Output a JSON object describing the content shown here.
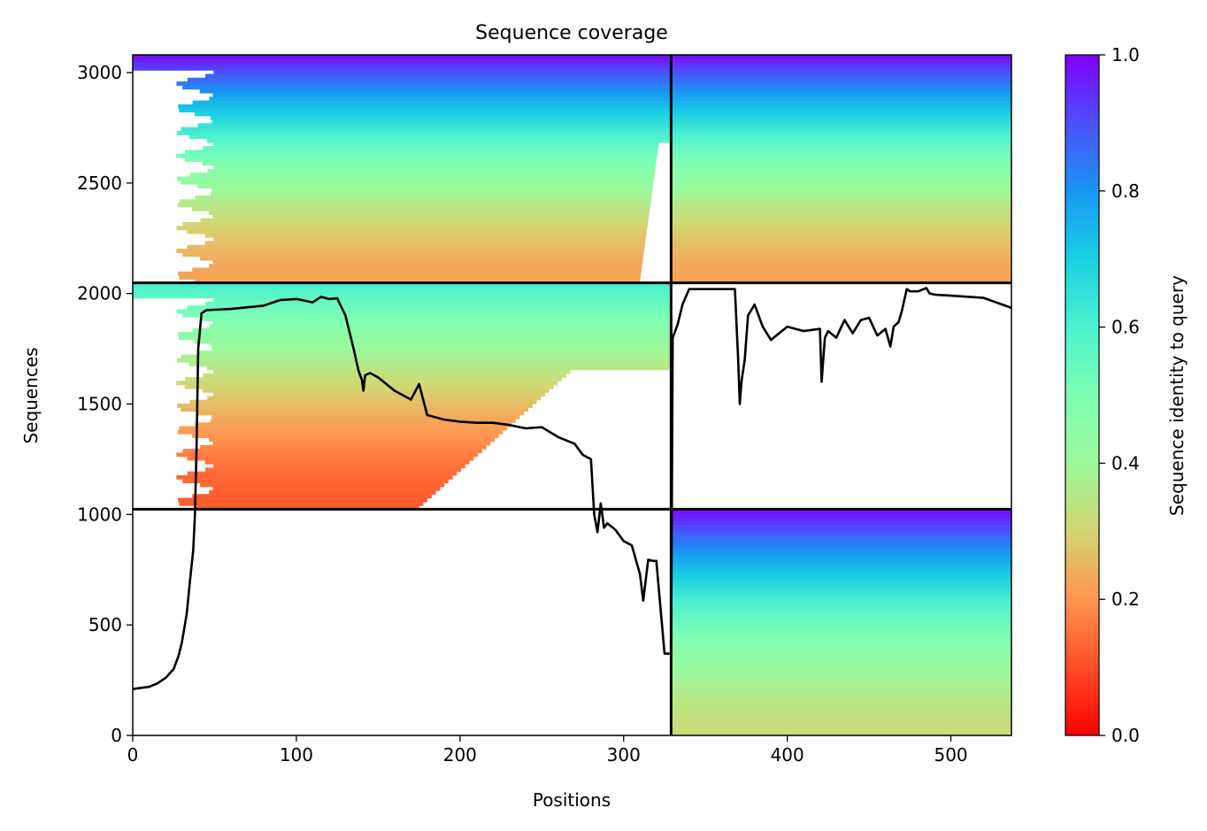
{
  "chart_data": {
    "type": "heatmap",
    "title": "Sequence coverage",
    "xlabel": "Positions",
    "ylabel": "Sequences",
    "xlim": [
      0,
      537
    ],
    "ylim": [
      0,
      3080
    ],
    "x_ticks": [
      0,
      100,
      200,
      300,
      400,
      500
    ],
    "y_ticks": [
      0,
      500,
      1000,
      1500,
      2000,
      2500,
      3000
    ],
    "colorbar": {
      "label": "Sequence identity to query",
      "range": [
        0,
        1
      ],
      "ticks": [
        0.0,
        0.2,
        0.4,
        0.6,
        0.8,
        1.0
      ],
      "tick_labels": [
        "0.0",
        "0.2",
        "0.4",
        "0.6",
        "0.8",
        "1.0"
      ],
      "colormap": "rainbow_r"
    },
    "chain_boundaries": {
      "vertical_position": 329,
      "horizontal_sequences": [
        1024,
        2048
      ]
    },
    "blocks": [
      {
        "x": [
          0,
          329
        ],
        "y": [
          2048,
          3080
        ],
        "identity_range": [
          0.22,
          1.0
        ],
        "lead_gap_positions": 38,
        "tail_gap_start": 310
      },
      {
        "x": [
          329,
          537
        ],
        "y": [
          2048,
          3080
        ],
        "identity_range": [
          0.22,
          1.0
        ],
        "lead_gap_positions": 0,
        "tail_gap_start": 537
      },
      {
        "x": [
          0,
          329
        ],
        "y": [
          1024,
          2048
        ],
        "identity_range": [
          0.12,
          0.62
        ],
        "lead_gap_positions": 38,
        "tail_gap_start": 175
      },
      {
        "x": [
          329,
          537
        ],
        "y": [
          0,
          1024
        ],
        "identity_range": [
          0.32,
          1.0
        ],
        "lead_gap_positions": 0,
        "tail_gap_start": 537
      }
    ],
    "coverage_line": {
      "x": [
        0,
        5,
        10,
        15,
        20,
        25,
        28,
        30,
        33,
        35,
        37,
        38,
        39,
        40,
        42,
        45,
        60,
        80,
        90,
        100,
        110,
        115,
        120,
        125,
        130,
        135,
        138,
        140,
        141,
        142,
        145,
        150,
        160,
        170,
        175,
        180,
        190,
        200,
        210,
        220,
        230,
        240,
        250,
        260,
        270,
        275,
        280,
        282,
        284,
        286,
        288,
        290,
        295,
        300,
        305,
        310,
        312,
        315,
        318,
        320,
        325,
        329,
        330,
        333,
        336,
        340,
        345,
        350,
        360,
        368,
        370,
        371,
        372,
        374,
        376,
        380,
        385,
        390,
        395,
        400,
        410,
        420,
        421,
        422,
        423,
        425,
        430,
        435,
        440,
        445,
        450,
        455,
        460,
        463,
        465,
        468,
        470,
        473,
        475,
        480,
        485,
        487,
        490,
        500,
        520,
        537
      ],
      "y": [
        210,
        215,
        220,
        235,
        260,
        300,
        360,
        420,
        550,
        700,
        840,
        1000,
        1300,
        1750,
        1910,
        1925,
        1930,
        1945,
        1970,
        1975,
        1960,
        1985,
        1975,
        1978,
        1900,
        1750,
        1650,
        1610,
        1560,
        1630,
        1640,
        1620,
        1560,
        1520,
        1590,
        1450,
        1430,
        1420,
        1415,
        1415,
        1405,
        1390,
        1395,
        1350,
        1320,
        1270,
        1250,
        1000,
        920,
        1050,
        940,
        960,
        930,
        880,
        860,
        730,
        610,
        795,
        790,
        790,
        370,
        370,
        1800,
        1860,
        1950,
        2020,
        2020,
        2020,
        2020,
        2020,
        1700,
        1500,
        1600,
        1700,
        1900,
        1950,
        1850,
        1790,
        1820,
        1850,
        1830,
        1840,
        1600,
        1700,
        1800,
        1830,
        1800,
        1880,
        1820,
        1880,
        1890,
        1810,
        1840,
        1760,
        1850,
        1870,
        1920,
        2020,
        2010,
        2010,
        2025,
        2000,
        1995,
        1990,
        1980,
        1935
      ]
    }
  }
}
